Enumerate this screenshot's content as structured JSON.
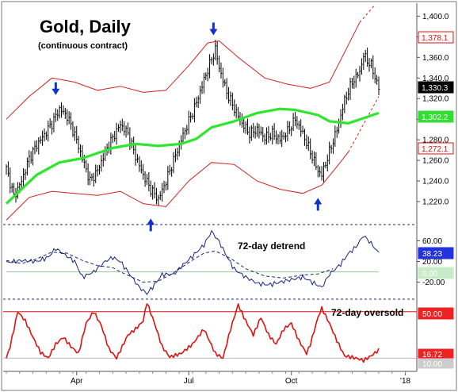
{
  "chart_data": [
    {
      "type": "candlestick",
      "title": "Gold, Daily",
      "subtitle": "(continuous contract)",
      "x_tick_labels": [
        "Apr",
        "Jul",
        "Oct",
        "'18"
      ],
      "y_tick_labels": [
        "1,220.0",
        "1,240.0",
        "1,260.0",
        "1,280.0",
        "1,300.0",
        "1,320.0",
        "1,340.0",
        "1,360.0",
        "1,380.0",
        "1,400.0"
      ],
      "ylim": [
        1200,
        1408
      ],
      "price_path": [
        [
          0,
          1252
        ],
        [
          4,
          1225
        ],
        [
          8,
          1240
        ],
        [
          12,
          1262
        ],
        [
          16,
          1275
        ],
        [
          20,
          1285
        ],
        [
          24,
          1296
        ],
        [
          28,
          1310
        ],
        [
          32,
          1303
        ],
        [
          36,
          1285
        ],
        [
          40,
          1262
        ],
        [
          44,
          1240
        ],
        [
          48,
          1250
        ],
        [
          52,
          1268
        ],
        [
          56,
          1282
        ],
        [
          60,
          1295
        ],
        [
          64,
          1286
        ],
        [
          68,
          1264
        ],
        [
          72,
          1246
        ],
        [
          76,
          1232
        ],
        [
          80,
          1222
        ],
        [
          84,
          1240
        ],
        [
          88,
          1260
        ],
        [
          92,
          1280
        ],
        [
          96,
          1298
        ],
        [
          100,
          1316
        ],
        [
          104,
          1338
        ],
        [
          108,
          1358
        ],
        [
          110,
          1368
        ],
        [
          112,
          1350
        ],
        [
          116,
          1326
        ],
        [
          120,
          1310
        ],
        [
          124,
          1296
        ],
        [
          128,
          1286
        ],
        [
          132,
          1290
        ],
        [
          136,
          1282
        ],
        [
          140,
          1286
        ],
        [
          144,
          1280
        ],
        [
          148,
          1288
        ],
        [
          152,
          1300
        ],
        [
          156,
          1286
        ],
        [
          160,
          1268
        ],
        [
          164,
          1250
        ],
        [
          166,
          1246
        ],
        [
          170,
          1268
        ],
        [
          174,
          1290
        ],
        [
          178,
          1318
        ],
        [
          182,
          1336
        ],
        [
          186,
          1346
        ],
        [
          188,
          1362
        ],
        [
          192,
          1352
        ],
        [
          196,
          1330
        ]
      ],
      "smooth_line": [
        [
          0,
          1218
        ],
        [
          16,
          1246
        ],
        [
          28,
          1258
        ],
        [
          40,
          1262
        ],
        [
          56,
          1272
        ],
        [
          68,
          1276
        ],
        [
          80,
          1274
        ],
        [
          92,
          1276
        ],
        [
          100,
          1281
        ],
        [
          108,
          1292
        ],
        [
          120,
          1298
        ],
        [
          132,
          1306
        ],
        [
          144,
          1310
        ],
        [
          152,
          1309
        ],
        [
          164,
          1304
        ],
        [
          170,
          1298
        ],
        [
          180,
          1296
        ],
        [
          196,
          1306
        ]
      ],
      "upper_band": [
        [
          0,
          1300
        ],
        [
          12,
          1322
        ],
        [
          24,
          1340
        ],
        [
          36,
          1336
        ],
        [
          48,
          1328
        ],
        [
          60,
          1332
        ],
        [
          72,
          1326
        ],
        [
          84,
          1328
        ],
        [
          96,
          1352
        ],
        [
          106,
          1374
        ],
        [
          112,
          1376
        ],
        [
          122,
          1360
        ],
        [
          136,
          1340
        ],
        [
          148,
          1334
        ],
        [
          160,
          1330
        ],
        [
          170,
          1336
        ],
        [
          180,
          1372
        ],
        [
          186,
          1394
        ]
      ],
      "upper_band_projection": [
        [
          186,
          1394
        ],
        [
          194,
          1411
        ]
      ],
      "lower_band": [
        [
          0,
          1202
        ],
        [
          12,
          1224
        ],
        [
          24,
          1230
        ],
        [
          36,
          1228
        ],
        [
          48,
          1226
        ],
        [
          60,
          1230
        ],
        [
          72,
          1218
        ],
        [
          84,
          1215
        ],
        [
          96,
          1240
        ],
        [
          108,
          1258
        ],
        [
          120,
          1256
        ],
        [
          132,
          1240
        ],
        [
          144,
          1232
        ],
        [
          156,
          1228
        ],
        [
          166,
          1236
        ],
        [
          174,
          1254
        ],
        [
          180,
          1268
        ]
      ],
      "lower_band_projection": [
        [
          180,
          1268
        ],
        [
          196,
          1322
        ]
      ],
      "current_price": "1,330.3",
      "smooth_value": "1,302.2",
      "upper_value": "1,378.1",
      "lower_value": "1,272.1",
      "colors": {
        "price": "#000000",
        "smooth": "#2ee62e",
        "band": "#d21f1f",
        "arrow": "#1133cc"
      },
      "markers": [
        {
          "direction": "down",
          "x": 26,
          "y": 1325
        },
        {
          "direction": "down",
          "x": 109,
          "y": 1383
        },
        {
          "direction": "up",
          "x": 76,
          "y": 1202
        },
        {
          "direction": "up",
          "x": 164,
          "y": 1222
        }
      ]
    },
    {
      "type": "line",
      "annotation": "72-day detrend",
      "y_tick_labels": [
        "60.00",
        "20.00",
        "-20.00"
      ],
      "ylim": [
        -45,
        85
      ],
      "current_value": "38.23",
      "zero_label": "0.00",
      "reference_value": 0,
      "series_path": [
        [
          0,
          18
        ],
        [
          8,
          22
        ],
        [
          16,
          20
        ],
        [
          22,
          28
        ],
        [
          26,
          45
        ],
        [
          30,
          35
        ],
        [
          36,
          20
        ],
        [
          40,
          -10
        ],
        [
          46,
          0
        ],
        [
          52,
          20
        ],
        [
          56,
          28
        ],
        [
          60,
          20
        ],
        [
          66,
          -10
        ],
        [
          70,
          -30
        ],
        [
          74,
          -42
        ],
        [
          78,
          -25
        ],
        [
          82,
          -5
        ],
        [
          88,
          -5
        ],
        [
          92,
          10
        ],
        [
          98,
          30
        ],
        [
          104,
          52
        ],
        [
          108,
          78
        ],
        [
          112,
          58
        ],
        [
          116,
          30
        ],
        [
          120,
          5
        ],
        [
          126,
          -10
        ],
        [
          132,
          -22
        ],
        [
          138,
          -25
        ],
        [
          144,
          -20
        ],
        [
          150,
          -15
        ],
        [
          156,
          -10
        ],
        [
          162,
          -22
        ],
        [
          166,
          -30
        ],
        [
          170,
          -5
        ],
        [
          176,
          15
        ],
        [
          180,
          35
        ],
        [
          184,
          48
        ],
        [
          188,
          70
        ],
        [
          192,
          55
        ],
        [
          196,
          36
        ]
      ],
      "smooth_path": [
        [
          0,
          22
        ],
        [
          8,
          16
        ],
        [
          16,
          25
        ],
        [
          24,
          38
        ],
        [
          32,
          36
        ],
        [
          40,
          22
        ],
        [
          48,
          12
        ],
        [
          56,
          8
        ],
        [
          60,
          0
        ],
        [
          66,
          -10
        ],
        [
          72,
          -20
        ],
        [
          80,
          -18
        ],
        [
          88,
          -2
        ],
        [
          96,
          18
        ],
        [
          104,
          36
        ],
        [
          110,
          40
        ],
        [
          118,
          26
        ],
        [
          126,
          6
        ],
        [
          136,
          -8
        ],
        [
          146,
          -12
        ],
        [
          156,
          -6
        ],
        [
          164,
          -4
        ],
        [
          172,
          6
        ]
      ],
      "colors": {
        "series": "#1a237e",
        "smooth": "#1a237e",
        "reference": "#9bc59b"
      }
    },
    {
      "type": "area",
      "annotation": "72-day oversold",
      "current_value": "16.72",
      "threshold_label": "50.00",
      "baseline_label": "10.00",
      "threshold_value": 50,
      "baseline_value": 10,
      "ylim": [
        0,
        58
      ],
      "series_path": [
        [
          0,
          10
        ],
        [
          2,
          20
        ],
        [
          6,
          50
        ],
        [
          10,
          42
        ],
        [
          14,
          28
        ],
        [
          18,
          15
        ],
        [
          22,
          10
        ],
        [
          26,
          22
        ],
        [
          30,
          28
        ],
        [
          34,
          20
        ],
        [
          38,
          14
        ],
        [
          42,
          40
        ],
        [
          46,
          50
        ],
        [
          50,
          38
        ],
        [
          54,
          18
        ],
        [
          58,
          10
        ],
        [
          64,
          30
        ],
        [
          68,
          35
        ],
        [
          72,
          42
        ],
        [
          74,
          58
        ],
        [
          78,
          40
        ],
        [
          82,
          20
        ],
        [
          86,
          11
        ],
        [
          92,
          14
        ],
        [
          98,
          22
        ],
        [
          104,
          35
        ],
        [
          110,
          14
        ],
        [
          114,
          10
        ],
        [
          118,
          35
        ],
        [
          122,
          56
        ],
        [
          126,
          42
        ],
        [
          130,
          30
        ],
        [
          134,
          45
        ],
        [
          138,
          30
        ],
        [
          142,
          22
        ],
        [
          146,
          35
        ],
        [
          150,
          40
        ],
        [
          154,
          25
        ],
        [
          158,
          14
        ],
        [
          160,
          22
        ],
        [
          164,
          45
        ],
        [
          166,
          53
        ],
        [
          170,
          40
        ],
        [
          174,
          25
        ],
        [
          178,
          12
        ],
        [
          184,
          10
        ],
        [
          188,
          8
        ],
        [
          192,
          12
        ],
        [
          196,
          17
        ]
      ],
      "colors": {
        "series": "#e01010",
        "threshold": "#e01010",
        "baseline": "#bbbbbb"
      }
    }
  ],
  "badges": {
    "upper": {
      "fill": "#ffffff",
      "stroke": "#e01010",
      "text": "#e01010"
    },
    "lower": {
      "fill": "#ffffff",
      "stroke": "#e01010",
      "text": "#e01010"
    },
    "current": {
      "fill": "#000000",
      "stroke": "#000000",
      "text": "#ffffff"
    },
    "smooth": {
      "fill": "#33dd33",
      "stroke": "#33dd33",
      "text": "#ffffff"
    },
    "detrend": {
      "fill": "#2233dd",
      "stroke": "#2233dd",
      "text": "#ffffff"
    },
    "zero": {
      "fill": "#c8ecc8",
      "stroke": "#c8ecc8",
      "text": "#ffffff"
    },
    "threshold": {
      "fill": "#ee2222",
      "stroke": "#ee2222",
      "text": "#ffffff"
    },
    "oversold": {
      "fill": "#ee2222",
      "stroke": "#ee2222",
      "text": "#ffffff"
    },
    "baseline": {
      "fill": "#cccccc",
      "stroke": "#cccccc",
      "text": "#ffffff"
    }
  }
}
